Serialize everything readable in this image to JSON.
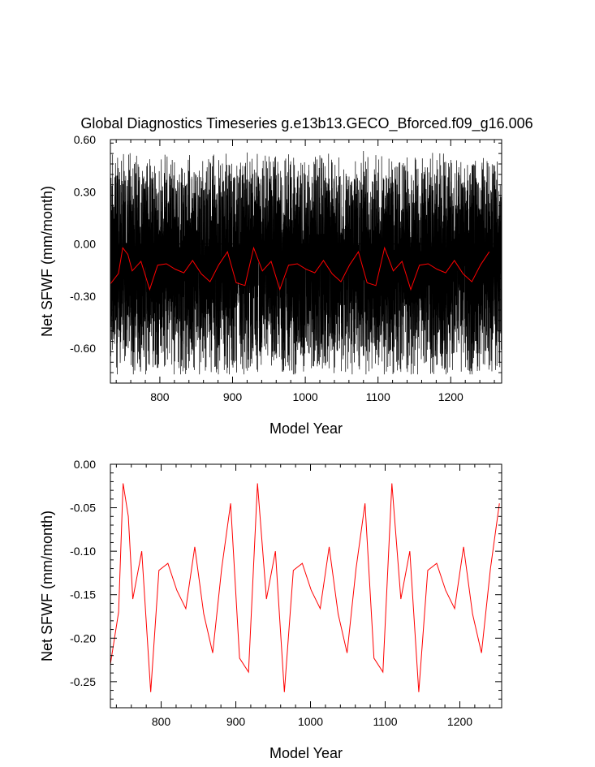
{
  "title": "Global Diagnostics Timeseries g.e13b13.GECO_Bforced.f09_g16.006",
  "chart_data": [
    {
      "type": "line",
      "title": "Global Diagnostics Timeseries g.e13b13.GECO_Bforced.f09_g16.006",
      "xlabel": "Model Year",
      "ylabel": "Net SFWF (mm/month)",
      "xlim": [
        732,
        1270
      ],
      "ylim": [
        -0.8,
        0.6
      ],
      "x_ticks": [
        800,
        900,
        1000,
        1100,
        1200
      ],
      "y_ticks": [
        0.6,
        0.3,
        0.0,
        -0.3,
        -0.6
      ],
      "y_tick_labels": [
        "0.60",
        "0.30",
        "0.00",
        "-0.30",
        "-0.60"
      ],
      "reference_line": 0.0,
      "series": [
        {
          "color": "#000000",
          "x_start": 732,
          "x_end": 1270,
          "description_of_values": "monthly values oscillating between about -0.75 and 0.57",
          "monthly_range": [
            -0.75,
            0.57
          ]
        },
        {
          "color": "#ff0000",
          "x": [
            732,
            743,
            749,
            756,
            762,
            774,
            786,
            797,
            809,
            821,
            833,
            845,
            857,
            869,
            881,
            893,
            905,
            917,
            929,
            941,
            953,
            965,
            977,
            989,
            1001,
            1013,
            1025,
            1037,
            1049,
            1061,
            1073,
            1085,
            1097,
            1109,
            1121,
            1133,
            1145,
            1157,
            1169,
            1181,
            1193,
            1205,
            1217,
            1229,
            1241,
            1253
          ],
          "values": [
            -0.23,
            -0.17,
            -0.022,
            -0.06,
            -0.155,
            -0.1,
            -0.262,
            -0.122,
            -0.114,
            -0.145,
            -0.166,
            -0.095,
            -0.172,
            -0.217,
            -0.12,
            -0.045,
            -0.223,
            -0.239,
            -0.022,
            -0.155,
            -0.1,
            -0.262,
            -0.122,
            -0.114,
            -0.145,
            -0.166,
            -0.095,
            -0.172,
            -0.217,
            -0.12,
            -0.045,
            -0.223,
            -0.239,
            -0.022,
            -0.155,
            -0.1,
            -0.262,
            -0.122,
            -0.114,
            -0.145,
            -0.166,
            -0.095,
            -0.172,
            -0.217,
            -0.12,
            -0.045
          ]
        }
      ]
    },
    {
      "type": "line",
      "xlabel": "Model Year",
      "ylabel": "Net SFWF (mm/month)",
      "xlim": [
        732,
        1256
      ],
      "ylim": [
        -0.28,
        0.0
      ],
      "x_ticks": [
        800,
        900,
        1000,
        1100,
        1200
      ],
      "y_ticks": [
        0.0,
        -0.05,
        -0.1,
        -0.15,
        -0.2,
        -0.25
      ],
      "y_tick_labels": [
        "0.00",
        "-0.05",
        "-0.10",
        "-0.15",
        "-0.20",
        "-0.25"
      ],
      "series": [
        {
          "color": "#ff0000",
          "x": [
            732,
            743,
            749,
            756,
            762,
            774,
            786,
            797,
            809,
            821,
            833,
            845,
            857,
            869,
            881,
            893,
            905,
            917,
            929,
            941,
            953,
            965,
            977,
            989,
            1001,
            1013,
            1025,
            1037,
            1049,
            1061,
            1073,
            1085,
            1097,
            1109,
            1121,
            1133,
            1145,
            1157,
            1169,
            1181,
            1193,
            1205,
            1217,
            1229,
            1241,
            1253
          ],
          "values": [
            -0.23,
            -0.17,
            -0.022,
            -0.06,
            -0.155,
            -0.1,
            -0.262,
            -0.122,
            -0.114,
            -0.145,
            -0.166,
            -0.095,
            -0.172,
            -0.217,
            -0.12,
            -0.045,
            -0.223,
            -0.239,
            -0.022,
            -0.155,
            -0.1,
            -0.262,
            -0.122,
            -0.114,
            -0.145,
            -0.166,
            -0.095,
            -0.172,
            -0.217,
            -0.12,
            -0.045,
            -0.223,
            -0.239,
            -0.022,
            -0.155,
            -0.1,
            -0.262,
            -0.122,
            -0.114,
            -0.145,
            -0.166,
            -0.095,
            -0.172,
            -0.217,
            -0.12,
            -0.045
          ]
        }
      ]
    }
  ]
}
